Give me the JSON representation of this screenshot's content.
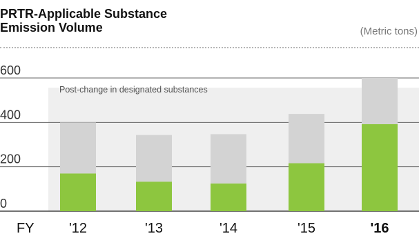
{
  "title_line1": "PRTR-Applicable Substance",
  "title_line2": "Emission Volume",
  "unit": "(Metric tons)",
  "chart_data": {
    "type": "bar",
    "stacked": true,
    "x_prefix_label": "FY",
    "categories": [
      "'12",
      "'13",
      "'14",
      "'15",
      "'16"
    ],
    "series": [
      {
        "name": "",
        "color": "#8dc63f",
        "values": [
          170,
          133,
          125,
          216,
          392
        ]
      },
      {
        "name": "",
        "color": "#d3d3d3",
        "values": [
          230,
          210,
          222,
          222,
          208
        ]
      }
    ],
    "totals": [
      400,
      343,
      347,
      438,
      600
    ],
    "ylim": [
      0,
      600
    ],
    "yticks": [
      0,
      200,
      400,
      600
    ],
    "ytick_labels": [
      "0",
      "200",
      "400",
      "600"
    ],
    "annotation": "Post-change in designated substances",
    "grid": true,
    "emphasized_category": "'16",
    "colors": {
      "panel": "#efefef",
      "axis": "#444444",
      "grid": "#666666"
    }
  }
}
